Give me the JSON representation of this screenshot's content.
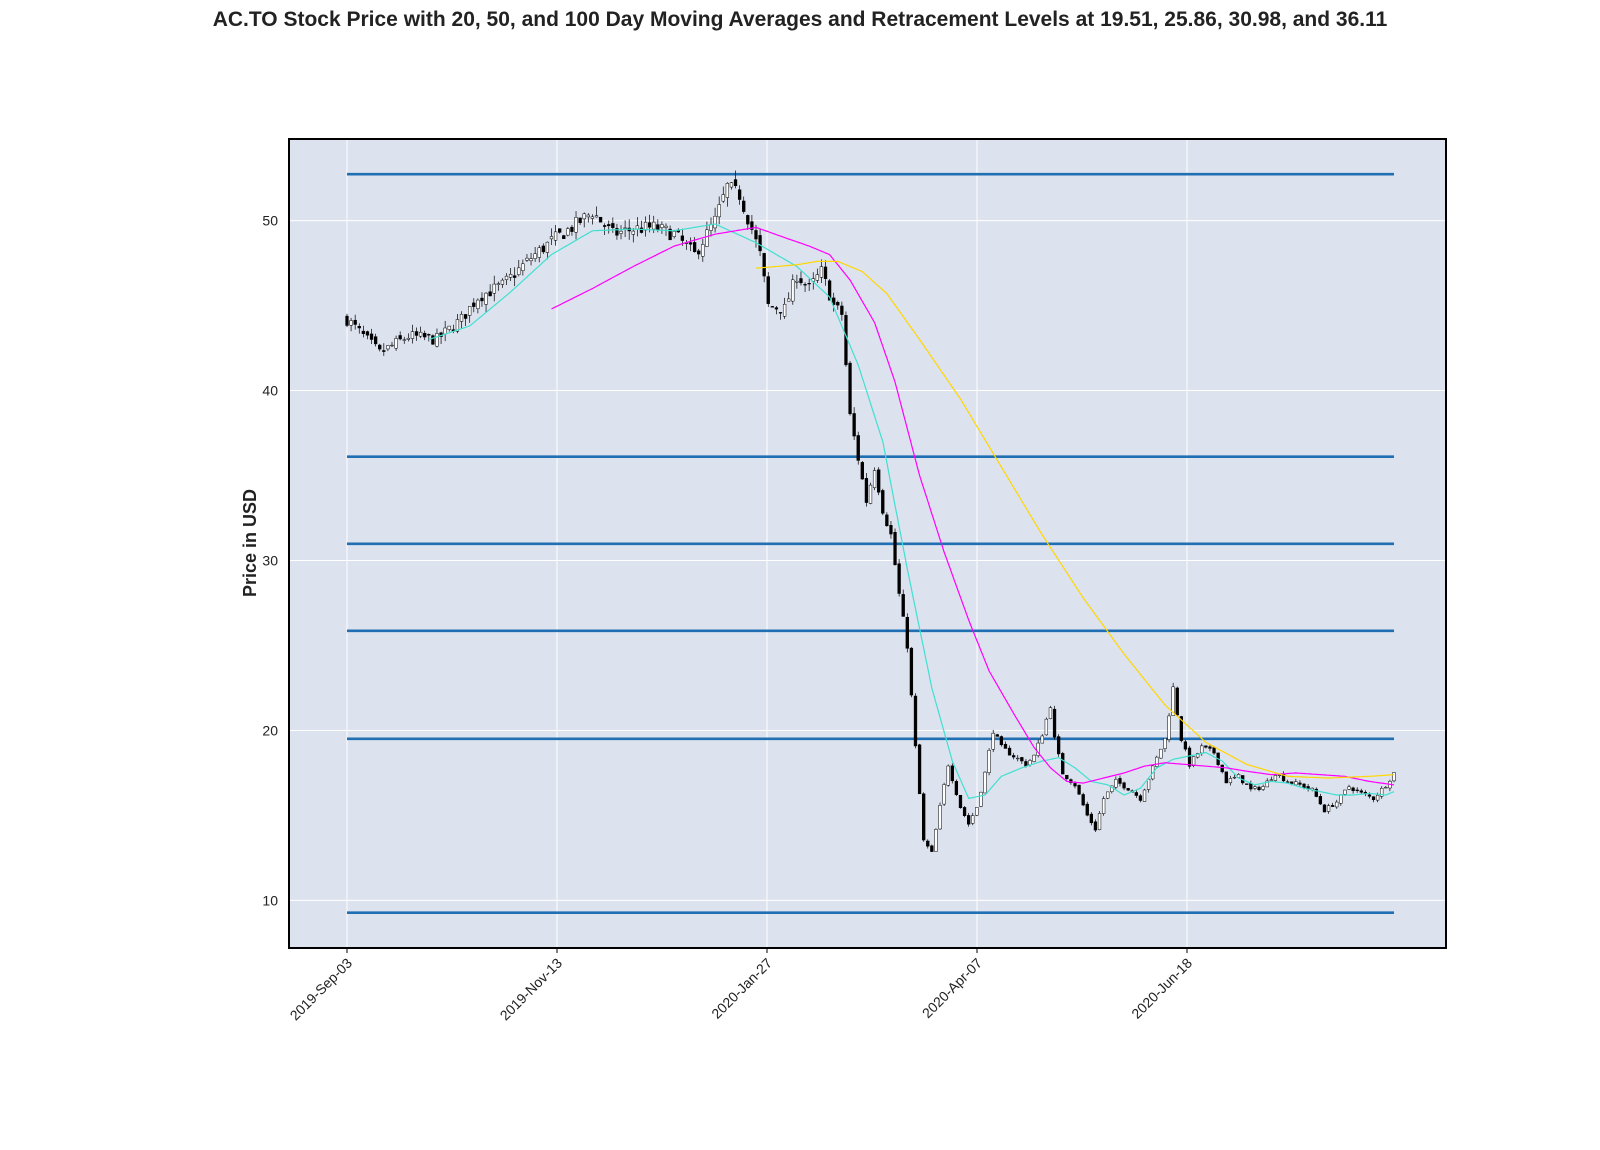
{
  "chart_data": {
    "type": "candlestick",
    "title": "AC.TO Stock Price with 20, 50, and 100 Day Moving Averages and Retracement Levels at 19.51, 25.86, 30.98, and 36.11",
    "xlabel": "",
    "ylabel": "Price in USD",
    "ylim": [
      7.2,
      54.8
    ],
    "yticks": [
      10,
      20,
      30,
      40,
      50
    ],
    "xticks": [
      "2019-Sep-03",
      "2019-Nov-13",
      "2020-Jan-27",
      "2020-Apr-07",
      "2020-Jun-18"
    ],
    "grid": true,
    "colors": {
      "background": "#dde2ef",
      "grid": "#ffffff",
      "candle_up_fill": "#ffffff",
      "candle_down_fill": "#000000",
      "candle_edge": "#000000",
      "ma20": "#40e0d0",
      "ma50": "#ff00ff",
      "ma100": "#ffd700",
      "retracement": "#1f6fb2"
    },
    "retracement_levels": [
      9.28,
      19.51,
      25.86,
      30.98,
      36.11,
      52.73
    ],
    "price_keypoints": [
      [
        0,
        44.2
      ],
      [
        8,
        42.2
      ],
      [
        15,
        43.2
      ],
      [
        22,
        43.0
      ],
      [
        28,
        44.2
      ],
      [
        32,
        45.5
      ],
      [
        38,
        46.2
      ],
      [
        45,
        47.8
      ],
      [
        50,
        48.8
      ],
      [
        55,
        49.6
      ],
      [
        60,
        50.5
      ],
      [
        65,
        49.2
      ],
      [
        70,
        49.5
      ],
      [
        75,
        49.6
      ],
      [
        80,
        49.2
      ],
      [
        85,
        48.0
      ],
      [
        90,
        50.0
      ],
      [
        93,
        52.0
      ],
      [
        96,
        51.5
      ],
      [
        99,
        49.5
      ],
      [
        101,
        48.0
      ],
      [
        103,
        45.0
      ],
      [
        107,
        44.8
      ],
      [
        110,
        46.8
      ],
      [
        113,
        46.0
      ],
      [
        116,
        47.0
      ],
      [
        119,
        45.0
      ],
      [
        121,
        44.5
      ],
      [
        123,
        38.5
      ],
      [
        125,
        36.0
      ],
      [
        127,
        33.5
      ],
      [
        129,
        35.5
      ],
      [
        131,
        33.0
      ],
      [
        133,
        31.5
      ],
      [
        135,
        28.0
      ],
      [
        137,
        25.0
      ],
      [
        139,
        19.0
      ],
      [
        141,
        13.5
      ],
      [
        143,
        12.8
      ],
      [
        145,
        15.5
      ],
      [
        147,
        18.0
      ],
      [
        150,
        15.5
      ],
      [
        152,
        14.5
      ],
      [
        154,
        15.5
      ],
      [
        156,
        17.5
      ],
      [
        158,
        20.0
      ],
      [
        160,
        19.0
      ],
      [
        163,
        18.5
      ],
      [
        166,
        18.0
      ],
      [
        168,
        18.5
      ],
      [
        170,
        19.8
      ],
      [
        172,
        21.5
      ],
      [
        173,
        19.5
      ],
      [
        175,
        17.5
      ],
      [
        178,
        16.8
      ],
      [
        181,
        15.0
      ],
      [
        183,
        14.2
      ],
      [
        185,
        16.0
      ],
      [
        188,
        17.0
      ],
      [
        191,
        16.6
      ],
      [
        194,
        16.0
      ],
      [
        197,
        17.8
      ],
      [
        200,
        19.5
      ],
      [
        202,
        22.5
      ],
      [
        204,
        19.5
      ],
      [
        206,
        18.0
      ],
      [
        209,
        19.0
      ],
      [
        212,
        18.7
      ],
      [
        215,
        17.0
      ],
      [
        218,
        17.3
      ],
      [
        221,
        16.5
      ],
      [
        224,
        16.7
      ],
      [
        227,
        17.5
      ],
      [
        230,
        17.0
      ],
      [
        233,
        16.8
      ],
      [
        236,
        16.5
      ],
      [
        239,
        15.3
      ],
      [
        242,
        15.8
      ],
      [
        245,
        16.7
      ],
      [
        248,
        16.3
      ],
      [
        251,
        16.0
      ],
      [
        254,
        16.8
      ],
      [
        256,
        17.5
      ]
    ],
    "moving_averages": [
      {
        "window": 20,
        "color": "#40e0d0",
        "points": [
          [
            20,
            43.0
          ],
          [
            30,
            43.8
          ],
          [
            40,
            45.8
          ],
          [
            50,
            48.0
          ],
          [
            60,
            49.4
          ],
          [
            70,
            49.5
          ],
          [
            80,
            49.4
          ],
          [
            90,
            49.8
          ],
          [
            100,
            48.7
          ],
          [
            110,
            47.3
          ],
          [
            118,
            45.5
          ],
          [
            125,
            41.5
          ],
          [
            131,
            37.0
          ],
          [
            137,
            29.5
          ],
          [
            143,
            22.5
          ],
          [
            148,
            18.2
          ],
          [
            152,
            16.0
          ],
          [
            156,
            16.2
          ],
          [
            160,
            17.3
          ],
          [
            165,
            17.8
          ],
          [
            170,
            18.2
          ],
          [
            174,
            18.4
          ],
          [
            178,
            17.8
          ],
          [
            182,
            17.0
          ],
          [
            186,
            16.8
          ],
          [
            190,
            16.2
          ],
          [
            194,
            16.6
          ],
          [
            198,
            17.8
          ],
          [
            202,
            18.3
          ],
          [
            206,
            18.5
          ],
          [
            210,
            18.7
          ],
          [
            214,
            18.2
          ],
          [
            218,
            17.2
          ],
          [
            222,
            16.8
          ],
          [
            226,
            17.0
          ],
          [
            230,
            16.9
          ],
          [
            234,
            16.6
          ],
          [
            238,
            16.4
          ],
          [
            242,
            16.2
          ],
          [
            246,
            16.2
          ],
          [
            250,
            16.3
          ],
          [
            254,
            16.2
          ],
          [
            256,
            16.4
          ]
        ]
      },
      {
        "window": 50,
        "color": "#ff00ff",
        "points": [
          [
            50,
            44.8
          ],
          [
            60,
            46.0
          ],
          [
            70,
            47.3
          ],
          [
            80,
            48.5
          ],
          [
            90,
            49.2
          ],
          [
            100,
            49.6
          ],
          [
            107,
            49.0
          ],
          [
            113,
            48.5
          ],
          [
            118,
            48.0
          ],
          [
            123,
            46.5
          ],
          [
            129,
            44.0
          ],
          [
            134,
            40.5
          ],
          [
            140,
            35.0
          ],
          [
            146,
            30.5
          ],
          [
            152,
            26.5
          ],
          [
            157,
            23.5
          ],
          [
            163,
            21.0
          ],
          [
            168,
            19.0
          ],
          [
            172,
            17.8
          ],
          [
            176,
            17.0
          ],
          [
            180,
            16.9
          ],
          [
            185,
            17.2
          ],
          [
            190,
            17.5
          ],
          [
            195,
            17.9
          ],
          [
            200,
            18.1
          ],
          [
            205,
            18.0
          ],
          [
            210,
            17.9
          ],
          [
            215,
            17.8
          ],
          [
            220,
            17.6
          ],
          [
            226,
            17.4
          ],
          [
            232,
            17.5
          ],
          [
            238,
            17.4
          ],
          [
            244,
            17.3
          ],
          [
            250,
            17.0
          ],
          [
            256,
            16.8
          ]
        ]
      },
      {
        "window": 100,
        "color": "#ffd700",
        "points": [
          [
            100,
            47.2
          ],
          [
            105,
            47.3
          ],
          [
            110,
            47.4
          ],
          [
            115,
            47.6
          ],
          [
            120,
            47.6
          ],
          [
            126,
            47.0
          ],
          [
            132,
            45.7
          ],
          [
            140,
            43.0
          ],
          [
            150,
            39.5
          ],
          [
            160,
            35.5
          ],
          [
            170,
            31.5
          ],
          [
            180,
            27.8
          ],
          [
            190,
            24.5
          ],
          [
            200,
            21.5
          ],
          [
            210,
            19.3
          ],
          [
            220,
            18.0
          ],
          [
            230,
            17.3
          ],
          [
            240,
            17.2
          ],
          [
            250,
            17.3
          ],
          [
            256,
            17.4
          ]
        ]
      }
    ]
  }
}
